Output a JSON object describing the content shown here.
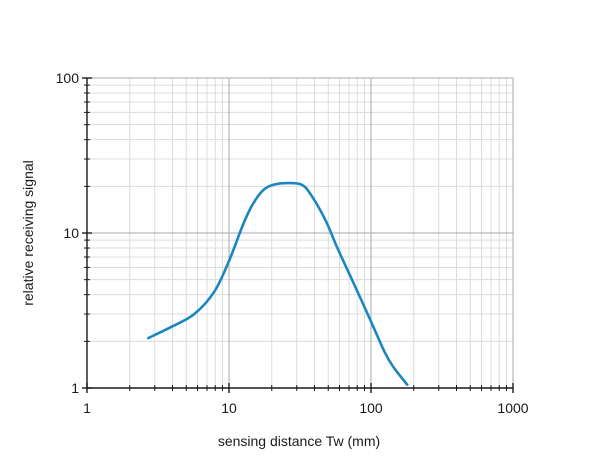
{
  "chart_data": {
    "type": "line",
    "xscale": "log",
    "yscale": "log",
    "xlim": [
      1,
      1000
    ],
    "ylim": [
      1,
      100
    ],
    "xlabel": "sensing distance Tw (mm)",
    "ylabel": "relative receiving signal",
    "x_ticks": [
      {
        "value": 1,
        "label": "1"
      },
      {
        "value": 10,
        "label": "10"
      },
      {
        "value": 100,
        "label": "100"
      },
      {
        "value": 1000,
        "label": "1000"
      }
    ],
    "y_ticks": [
      {
        "value": 1,
        "label": "1"
      },
      {
        "value": 10,
        "label": "10"
      },
      {
        "value": 100,
        "label": "100"
      }
    ],
    "grid": true,
    "line_color": "#1a87c1",
    "series": [
      {
        "x": [
          2.7,
          4,
          5.7,
          7.9,
          10,
          12.5,
          14.5,
          17.3,
          20.7,
          26,
          32.5,
          38,
          48,
          58,
          75,
          98,
          125,
          145,
          180
        ],
        "y": [
          2.1,
          2.5,
          3.0,
          4.2,
          6.6,
          11.2,
          15.0,
          18.8,
          20.5,
          21.0,
          20.5,
          17.5,
          12.0,
          8.0,
          4.8,
          2.8,
          1.7,
          1.35,
          1.05
        ]
      }
    ]
  }
}
